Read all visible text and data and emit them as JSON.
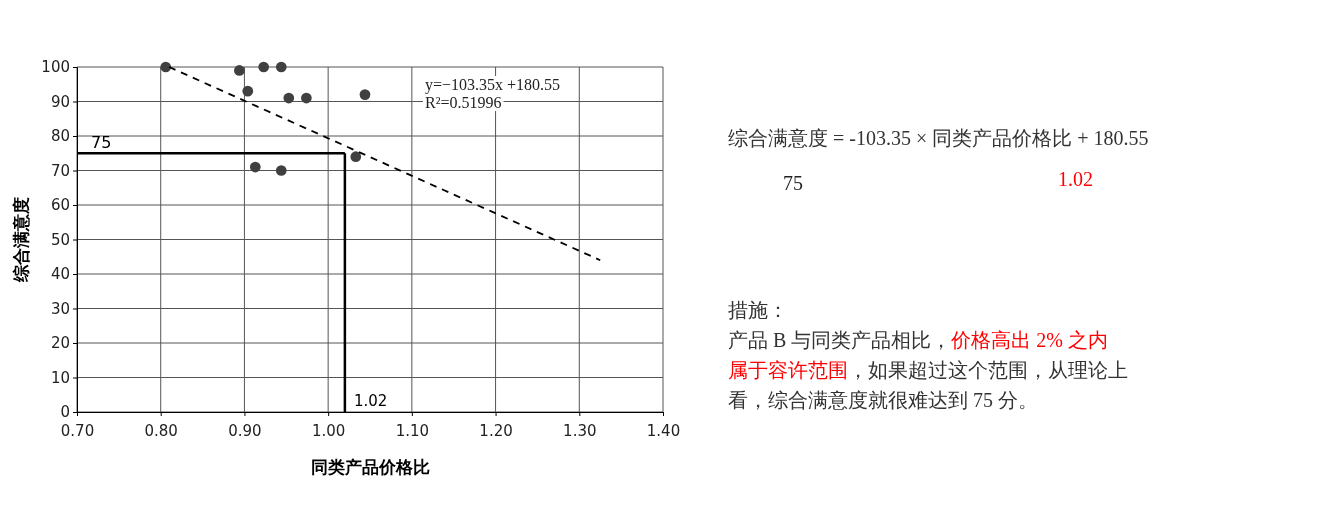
{
  "chart_data": {
    "type": "scatter",
    "xlabel": "同类产品价格比",
    "ylabel": "综合满意度",
    "xlim": [
      0.7,
      1.4
    ],
    "xticks": [
      {
        "value": 0.7,
        "label": "0.70"
      },
      {
        "value": 0.8,
        "label": "0.80"
      },
      {
        "value": 0.9,
        "label": "0.90"
      },
      {
        "value": 1.0,
        "label": "1.00"
      },
      {
        "value": 1.1,
        "label": "1.10"
      },
      {
        "value": 1.2,
        "label": "1.20"
      },
      {
        "value": 1.3,
        "label": "1.30"
      },
      {
        "value": 1.4,
        "label": "1.40"
      }
    ],
    "ylim": [
      0,
      100
    ],
    "yticks": [
      0,
      10,
      20,
      30,
      40,
      50,
      60,
      70,
      80,
      90,
      100
    ],
    "grid": true,
    "marker": "circle",
    "series": [
      {
        "color": "#404040",
        "x": [
          0.806,
          0.894,
          0.923,
          0.944,
          0.904,
          0.953,
          0.974,
          1.044,
          1.033,
          0.913,
          0.944
        ],
        "values": [
          100,
          99,
          100,
          100,
          93,
          91,
          91,
          92,
          74,
          71,
          70
        ]
      },
      {
        "type": "line",
        "color": "#000000",
        "line_style": "dashed",
        "marker": "none",
        "x": [
          0.81,
          1.325
        ],
        "values": [
          100,
          44
        ]
      }
    ],
    "ref_lines": [
      {
        "axis": "y",
        "value": 75,
        "label": "75",
        "color": "#000000"
      },
      {
        "axis": "x",
        "value": 1.02,
        "label": "1.02",
        "color": "#000000"
      }
    ],
    "annotations": [
      "y=−103.35x +180.55",
      "R²=0.51996",
      "综合满意度 = -103.35 × 同类产品价格比 + 180.55",
      "75",
      "1.02",
      "措施：",
      "产品 B 与同类产品相比，",
      "价格高出 2% 之内",
      "属于容许范围",
      "，如果超过这个范围，从理论上",
      "看，综合满意度就很难达到 75 分。"
    ]
  }
}
